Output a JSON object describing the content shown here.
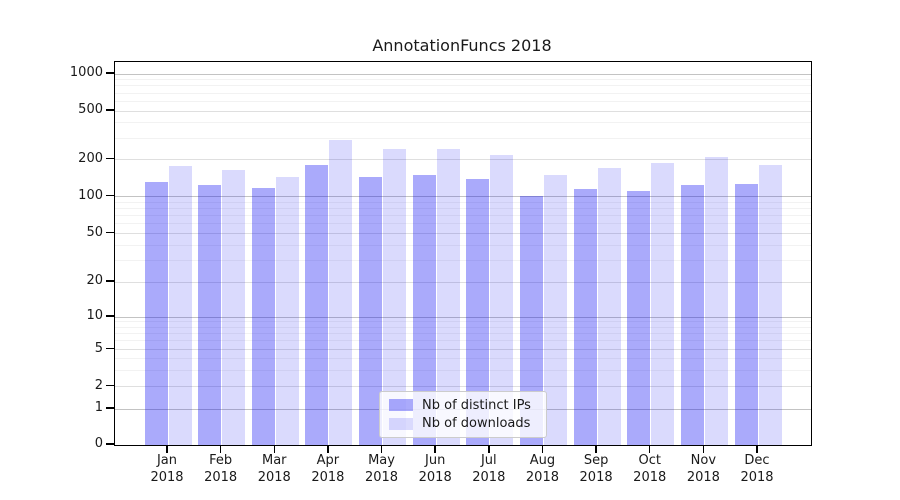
{
  "chart_data": {
    "type": "bar",
    "title": "AnnotationFuncs 2018",
    "categories": [
      "Jan 2018",
      "Feb 2018",
      "Mar 2018",
      "Apr 2018",
      "May 2018",
      "Jun 2018",
      "Jul 2018",
      "Aug 2018",
      "Sep 2018",
      "Oct 2018",
      "Nov 2018",
      "Dec 2018"
    ],
    "x_tick_months": [
      "Jan",
      "Feb",
      "Mar",
      "Apr",
      "May",
      "Jun",
      "Jul",
      "Aug",
      "Sep",
      "Oct",
      "Nov",
      "Dec"
    ],
    "x_tick_year": "2018",
    "series": [
      {
        "name": "Nb of distinct IPs",
        "fill": "rgba(8,8,243,0.345)",
        "values": [
          132,
          124,
          118,
          181,
          145,
          150,
          139,
          101,
          116,
          111,
          124,
          127
        ]
      },
      {
        "name": "Nb of downloads",
        "fill": "rgba(8,8,243,0.15)",
        "values": [
          176,
          165,
          144,
          289,
          246,
          243,
          216,
          151,
          172,
          188,
          210,
          179
        ]
      }
    ],
    "y_axis": {
      "scale": "symlog",
      "ticks": [
        0,
        1,
        2,
        5,
        10,
        20,
        50,
        100,
        200,
        500,
        1000
      ]
    },
    "grid": {
      "major_color": "#c3c3c3",
      "mid_color": "#dfdfdf",
      "minor_color": "#f2f2f2",
      "minor_values": [
        3,
        4,
        6,
        7,
        8,
        9,
        30,
        40,
        60,
        70,
        80,
        90,
        300,
        400,
        600,
        700,
        800,
        900
      ]
    },
    "legend": {
      "position": "lower center"
    },
    "axis_color": "#000000",
    "text_color": "#1a1a1a"
  }
}
